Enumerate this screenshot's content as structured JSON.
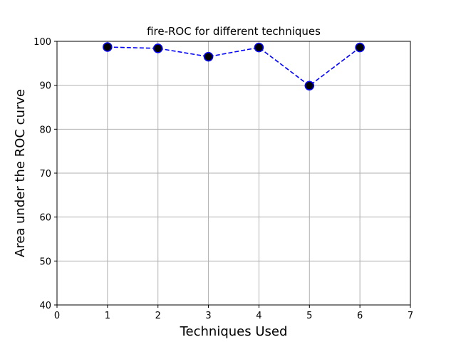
{
  "chart_data": {
    "type": "line",
    "title": "fire-ROC for different techniques",
    "xlabel": "Techniques Used",
    "ylabel": "Area under the ROC curve",
    "xlim": [
      0,
      7
    ],
    "ylim": [
      40,
      100
    ],
    "xticks": [
      0,
      1,
      2,
      3,
      4,
      5,
      6,
      7
    ],
    "yticks": [
      40,
      50,
      60,
      70,
      80,
      90,
      100
    ],
    "grid": true,
    "series": [
      {
        "x": [
          1,
          2,
          3,
          4,
          5,
          6
        ],
        "values": [
          98.7,
          98.4,
          96.5,
          98.6,
          89.9,
          98.6
        ],
        "line_color": "#0000ff",
        "line_style": "dashed",
        "marker_face": "#000000",
        "marker_edge": "#0000ff"
      }
    ]
  }
}
